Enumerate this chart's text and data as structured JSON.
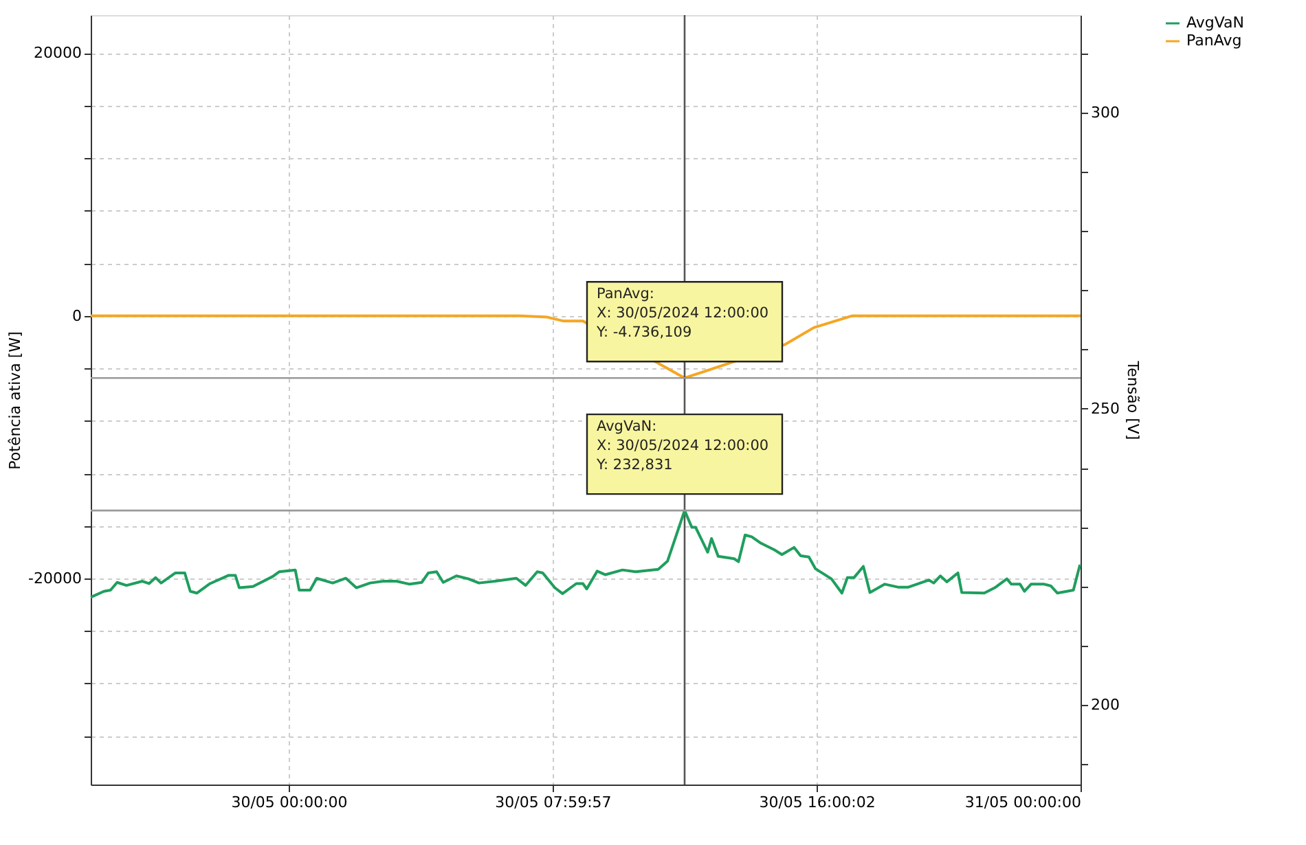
{
  "chart_data": {
    "type": "line",
    "xlabel": null,
    "ylabel": "Potência ativa [W]",
    "y2label": "Tensão [V]",
    "xlim": [
      "2024-05-29T18:00",
      "2024-05-31T00:00"
    ],
    "xticks": [
      {
        "value": "2024-05-30T00:00",
        "label": "30/05 00:00:00"
      },
      {
        "value": "2024-05-30T07:59:57",
        "label": "30/05 07:59:57"
      },
      {
        "value": "2024-05-30T16:00:02",
        "label": "30/05 16:00:02"
      },
      {
        "value": "2024-05-31T00:00",
        "label": "31/05 00:00:00"
      }
    ],
    "ylim": [
      -35700,
      22900
    ],
    "yticks": [
      {
        "value": -32000,
        "label": null
      },
      {
        "value": -28000,
        "label": null
      },
      {
        "value": -24000,
        "label": null
      },
      -20000,
      {
        "value": -16000,
        "label": null
      },
      {
        "value": -12000,
        "label": null
      },
      {
        "value": -8000,
        "label": null
      },
      {
        "value": -4000,
        "label": null
      },
      0,
      {
        "value": 4000,
        "label": null
      },
      {
        "value": 8000,
        "label": null
      },
      {
        "value": 12000,
        "label": null
      },
      {
        "value": 16000,
        "label": null
      },
      20000
    ],
    "y2lim": [
      186.6,
      316.4
    ],
    "y2ticks": [
      {
        "value": 190,
        "label": null
      },
      200,
      {
        "value": 210,
        "label": null
      },
      {
        "value": 220,
        "label": null
      },
      {
        "value": 230,
        "label": null
      },
      {
        "value": 240,
        "label": null
      },
      250,
      {
        "value": 260,
        "label": null
      },
      {
        "value": 270,
        "label": null
      },
      {
        "value": 280,
        "label": null
      },
      {
        "value": 290,
        "label": null
      },
      300,
      {
        "value": 310,
        "label": null
      }
    ],
    "grid": true,
    "legend": "top right",
    "series": [
      {
        "name": "AvgVaN",
        "color": "#1f9e5e",
        "axis": "y2",
        "x": [
          "2024-05-29T18:00",
          "2024-05-29T18:24",
          "2024-05-29T18:36",
          "2024-05-29T18:48",
          "2024-05-29T19:05",
          "2024-05-29T19:34",
          "2024-05-29T19:46",
          "2024-05-29T19:58",
          "2024-05-29T20:08",
          "2024-05-29T20:34",
          "2024-05-29T20:51",
          "2024-05-29T21:01",
          "2024-05-29T21:13",
          "2024-05-29T21:37",
          "2024-05-29T22:11",
          "2024-05-29T22:23",
          "2024-05-29T22:30",
          "2024-05-29T22:55",
          "2024-05-29T23:31",
          "2024-05-29T23:43",
          "2024-05-30T00:12",
          "2024-05-30T00:19",
          "2024-05-30T00:39",
          "2024-05-30T00:51",
          "2024-05-30T01:20",
          "2024-05-30T01:44",
          "2024-05-30T02:03",
          "2024-05-30T02:28",
          "2024-05-30T02:52",
          "2024-05-30T03:16",
          "2024-05-30T03:40",
          "2024-05-30T04:02",
          "2024-05-30T04:14",
          "2024-05-30T04:29",
          "2024-05-30T04:41",
          "2024-05-30T05:05",
          "2024-05-30T05:27",
          "2024-05-30T05:46",
          "2024-05-30T06:15",
          "2024-05-30T06:54",
          "2024-05-30T07:11",
          "2024-05-30T07:32",
          "2024-05-30T07:42",
          "2024-05-30T08:04",
          "2024-05-30T08:18",
          "2024-05-30T08:43",
          "2024-05-30T08:55",
          "2024-05-30T09:02",
          "2024-05-30T09:21",
          "2024-05-30T09:36",
          "2024-05-30T10:07",
          "2024-05-30T10:31",
          "2024-05-30T11:12",
          "2024-05-30T11:29",
          "2024-05-30T12:00",
          "2024-05-30T12:13",
          "2024-05-30T12:20",
          "2024-05-30T12:42",
          "2024-05-30T12:49",
          "2024-05-30T13:01",
          "2024-05-30T13:30",
          "2024-05-30T13:38",
          "2024-05-30T13:50",
          "2024-05-30T14:02",
          "2024-05-30T14:19",
          "2024-05-30T14:43",
          "2024-05-30T14:57",
          "2024-05-30T15:19",
          "2024-05-30T15:31",
          "2024-05-30T15:46",
          "2024-05-30T15:58",
          "2024-05-30T16:27",
          "2024-05-30T16:46",
          "2024-05-30T16:56",
          "2024-05-30T17:08",
          "2024-05-30T17:25",
          "2024-05-30T17:37",
          "2024-05-30T18:04",
          "2024-05-30T18:28",
          "2024-05-30T18:47",
          "2024-05-30T19:24",
          "2024-05-30T19:33",
          "2024-05-30T19:45",
          "2024-05-30T19:57",
          "2024-05-30T20:17",
          "2024-05-30T20:24",
          "2024-05-30T21:05",
          "2024-05-30T21:24",
          "2024-05-30T21:46",
          "2024-05-30T21:54",
          "2024-05-30T22:10",
          "2024-05-30T22:18",
          "2024-05-30T22:30",
          "2024-05-30T22:54",
          "2024-05-30T23:06",
          "2024-05-30T23:18",
          "2024-05-30T23:47",
          "2024-05-30T23:59"
        ],
        "values": [
          218.2,
          219.2,
          219.4,
          220.7,
          220.2,
          220.9,
          220.5,
          221.5,
          220.6,
          222.3,
          222.3,
          219.2,
          218.9,
          220.5,
          221.9,
          221.9,
          219.8,
          220.0,
          221.7,
          222.5,
          222.8,
          219.4,
          219.4,
          221.4,
          220.6,
          221.4,
          219.8,
          220.6,
          220.9,
          220.9,
          220.4,
          220.7,
          222.3,
          222.5,
          220.7,
          221.8,
          221.3,
          220.6,
          220.9,
          221.4,
          220.2,
          222.5,
          222.3,
          219.8,
          218.8,
          220.5,
          220.5,
          219.6,
          222.6,
          222.0,
          222.8,
          222.5,
          222.9,
          224.3,
          232.831,
          230.0,
          230.0,
          225.8,
          228.1,
          225.1,
          224.7,
          224.2,
          228.7,
          228.4,
          227.3,
          226.2,
          225.4,
          226.6,
          225.2,
          225.0,
          223.0,
          221.3,
          218.9,
          221.5,
          221.5,
          223.4,
          219.0,
          220.4,
          219.9,
          219.9,
          221.1,
          220.6,
          221.8,
          220.8,
          222.3,
          219.0,
          218.9,
          219.8,
          221.3,
          220.4,
          220.4,
          219.2,
          220.4,
          220.4,
          220.1,
          218.9,
          219.4,
          223.7
        ]
      },
      {
        "name": "PanAvg",
        "color": "#f5a623",
        "axis": "y",
        "x": [
          "2024-05-29T18:00",
          "2024-05-30T07:00",
          "2024-05-30T07:50",
          "2024-05-30T08:20",
          "2024-05-30T08:55",
          "2024-05-30T12:00",
          "2024-05-30T15:02",
          "2024-05-30T15:55",
          "2024-05-30T17:05",
          "2024-05-31T00:00"
        ],
        "values": [
          0,
          0,
          -100,
          -400,
          -400,
          -4736.109,
          -2200,
          -900,
          0,
          0
        ]
      }
    ],
    "ref_lines": [
      {
        "axis": "x",
        "value": "2024-05-30T12:00",
        "color": "#555555"
      },
      {
        "axis": "y",
        "value": -4736.109,
        "color": "#999999",
        "label": "PanAvg:\nX: 30/05/2024 12:00:00\nY: -4.736,109"
      },
      {
        "axis": "y2",
        "value": 232.831,
        "color": "#999999",
        "label": "AvgVaN:\nX: 30/05/2024 12:00:00\nY: 232,831"
      }
    ]
  }
}
